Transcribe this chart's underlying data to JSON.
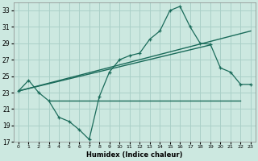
{
  "title": "",
  "xlabel": "Humidex (Indice chaleur)",
  "bg_color": "#cce8e0",
  "grid_color": "#aad0c8",
  "line_color": "#1a6b5a",
  "xlim": [
    -0.5,
    23.5
  ],
  "ylim": [
    17,
    34
  ],
  "yticks": [
    17,
    19,
    21,
    23,
    25,
    27,
    29,
    31,
    33
  ],
  "xticks": [
    0,
    1,
    2,
    3,
    4,
    5,
    6,
    7,
    8,
    9,
    10,
    11,
    12,
    13,
    14,
    15,
    16,
    17,
    18,
    19,
    20,
    21,
    22,
    23
  ],
  "curve1_x": [
    0,
    1,
    2,
    3,
    4,
    5,
    6,
    7,
    8,
    9,
    10,
    11,
    12,
    13,
    14,
    15,
    16,
    17,
    18,
    19,
    20,
    21,
    22,
    23
  ],
  "curve1_y": [
    23.2,
    24.5,
    23.0,
    22.0,
    20.0,
    19.5,
    18.5,
    17.3,
    22.5,
    25.5,
    27.0,
    27.5,
    27.8,
    29.5,
    30.5,
    33.0,
    33.5,
    31.0,
    29.0,
    28.9,
    26.0,
    25.5,
    24.0,
    24.0
  ],
  "curve2_x": [
    3,
    22
  ],
  "curve2_y": [
    22.0,
    22.0
  ],
  "curve3_x": [
    0,
    23
  ],
  "curve3_y": [
    23.2,
    30.5
  ],
  "curve4_x": [
    0,
    19
  ],
  "curve4_y": [
    23.2,
    28.8
  ]
}
